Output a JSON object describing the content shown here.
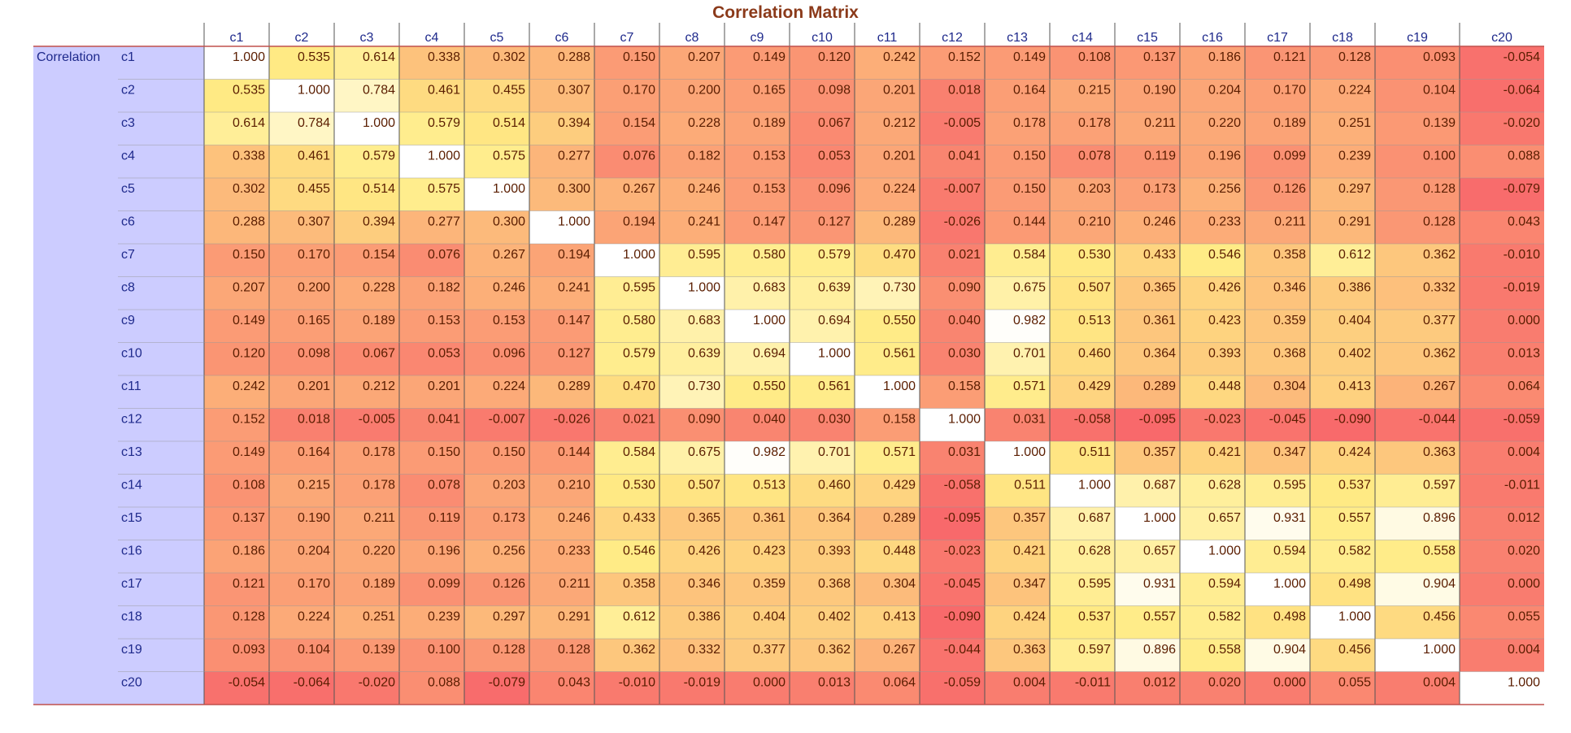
{
  "title": "Correlation Matrix",
  "row_group_label": "Correlation",
  "colors": {
    "low": "#f8696b",
    "mid": "#ffeb84",
    "high": "#ffffff",
    "label_panel": "#ccccff",
    "label_text": "#1f2a8c",
    "value_text": "#5a1d00",
    "title_text": "#8b3a1a",
    "rule_line": "#c0504d"
  },
  "chart_data": {
    "type": "heatmap",
    "title": "Correlation Matrix",
    "columns": [
      "c1",
      "c2",
      "c3",
      "c4",
      "c5",
      "c6",
      "c7",
      "c8",
      "c9",
      "c10",
      "c11",
      "c12",
      "c13",
      "c14",
      "c15",
      "c16",
      "c17",
      "c18",
      "c19",
      "c20"
    ],
    "rows": [
      "c1",
      "c2",
      "c3",
      "c4",
      "c5",
      "c6",
      "c7",
      "c8",
      "c9",
      "c10",
      "c11",
      "c12",
      "c13",
      "c14",
      "c15",
      "c16",
      "c17",
      "c18",
      "c19",
      "c20"
    ],
    "values": [
      [
        "1.000",
        "0.535",
        "0.614",
        "0.338",
        "0.302",
        "0.288",
        "0.150",
        "0.207",
        "0.149",
        "0.120",
        "0.242",
        "0.152",
        "0.149",
        "0.108",
        "0.137",
        "0.186",
        "0.121",
        "0.128",
        "0.093",
        "-0.054"
      ],
      [
        "0.535",
        "1.000",
        "0.784",
        "0.461",
        "0.455",
        "0.307",
        "0.170",
        "0.200",
        "0.165",
        "0.098",
        "0.201",
        "0.018",
        "0.164",
        "0.215",
        "0.190",
        "0.204",
        "0.170",
        "0.224",
        "0.104",
        "-0.064"
      ],
      [
        "0.614",
        "0.784",
        "1.000",
        "0.579",
        "0.514",
        "0.394",
        "0.154",
        "0.228",
        "0.189",
        "0.067",
        "0.212",
        "-0.005",
        "0.178",
        "0.178",
        "0.211",
        "0.220",
        "0.189",
        "0.251",
        "0.139",
        "-0.020"
      ],
      [
        "0.338",
        "0.461",
        "0.579",
        "1.000",
        "0.575",
        "0.277",
        "0.076",
        "0.182",
        "0.153",
        "0.053",
        "0.201",
        "0.041",
        "0.150",
        "0.078",
        "0.119",
        "0.196",
        "0.099",
        "0.239",
        "0.100",
        "0.088"
      ],
      [
        "0.302",
        "0.455",
        "0.514",
        "0.575",
        "1.000",
        "0.300",
        "0.267",
        "0.246",
        "0.153",
        "0.096",
        "0.224",
        "-0.007",
        "0.150",
        "0.203",
        "0.173",
        "0.256",
        "0.126",
        "0.297",
        "0.128",
        "-0.079"
      ],
      [
        "0.288",
        "0.307",
        "0.394",
        "0.277",
        "0.300",
        "1.000",
        "0.194",
        "0.241",
        "0.147",
        "0.127",
        "0.289",
        "-0.026",
        "0.144",
        "0.210",
        "0.246",
        "0.233",
        "0.211",
        "0.291",
        "0.128",
        "0.043"
      ],
      [
        "0.150",
        "0.170",
        "0.154",
        "0.076",
        "0.267",
        "0.194",
        "1.000",
        "0.595",
        "0.580",
        "0.579",
        "0.470",
        "0.021",
        "0.584",
        "0.530",
        "0.433",
        "0.546",
        "0.358",
        "0.612",
        "0.362",
        "-0.010"
      ],
      [
        "0.207",
        "0.200",
        "0.228",
        "0.182",
        "0.246",
        "0.241",
        "0.595",
        "1.000",
        "0.683",
        "0.639",
        "0.730",
        "0.090",
        "0.675",
        "0.507",
        "0.365",
        "0.426",
        "0.346",
        "0.386",
        "0.332",
        "-0.019"
      ],
      [
        "0.149",
        "0.165",
        "0.189",
        "0.153",
        "0.153",
        "0.147",
        "0.580",
        "0.683",
        "1.000",
        "0.694",
        "0.550",
        "0.040",
        "0.982",
        "0.513",
        "0.361",
        "0.423",
        "0.359",
        "0.404",
        "0.377",
        "0.000"
      ],
      [
        "0.120",
        "0.098",
        "0.067",
        "0.053",
        "0.096",
        "0.127",
        "0.579",
        "0.639",
        "0.694",
        "1.000",
        "0.561",
        "0.030",
        "0.701",
        "0.460",
        "0.364",
        "0.393",
        "0.368",
        "0.402",
        "0.362",
        "0.013"
      ],
      [
        "0.242",
        "0.201",
        "0.212",
        "0.201",
        "0.224",
        "0.289",
        "0.470",
        "0.730",
        "0.550",
        "0.561",
        "1.000",
        "0.158",
        "0.571",
        "0.429",
        "0.289",
        "0.448",
        "0.304",
        "0.413",
        "0.267",
        "0.064"
      ],
      [
        "0.152",
        "0.018",
        "-0.005",
        "0.041",
        "-0.007",
        "-0.026",
        "0.021",
        "0.090",
        "0.040",
        "0.030",
        "0.158",
        "1.000",
        "0.031",
        "-0.058",
        "-0.095",
        "-0.023",
        "-0.045",
        "-0.090",
        "-0.044",
        "-0.059"
      ],
      [
        "0.149",
        "0.164",
        "0.178",
        "0.150",
        "0.150",
        "0.144",
        "0.584",
        "0.675",
        "0.982",
        "0.701",
        "0.571",
        "0.031",
        "1.000",
        "0.511",
        "0.357",
        "0.421",
        "0.347",
        "0.424",
        "0.363",
        "0.004"
      ],
      [
        "0.108",
        "0.215",
        "0.178",
        "0.078",
        "0.203",
        "0.210",
        "0.530",
        "0.507",
        "0.513",
        "0.460",
        "0.429",
        "-0.058",
        "0.511",
        "1.000",
        "0.687",
        "0.628",
        "0.595",
        "0.537",
        "0.597",
        "-0.011"
      ],
      [
        "0.137",
        "0.190",
        "0.211",
        "0.119",
        "0.173",
        "0.246",
        "0.433",
        "0.365",
        "0.361",
        "0.364",
        "0.289",
        "-0.095",
        "0.357",
        "0.687",
        "1.000",
        "0.657",
        "0.931",
        "0.557",
        "0.896",
        "0.012"
      ],
      [
        "0.186",
        "0.204",
        "0.220",
        "0.196",
        "0.256",
        "0.233",
        "0.546",
        "0.426",
        "0.423",
        "0.393",
        "0.448",
        "-0.023",
        "0.421",
        "0.628",
        "0.657",
        "1.000",
        "0.594",
        "0.582",
        "0.558",
        "0.020"
      ],
      [
        "0.121",
        "0.170",
        "0.189",
        "0.099",
        "0.126",
        "0.211",
        "0.358",
        "0.346",
        "0.359",
        "0.368",
        "0.304",
        "-0.045",
        "0.347",
        "0.595",
        "0.931",
        "0.594",
        "1.000",
        "0.498",
        "0.904",
        "0.000"
      ],
      [
        "0.128",
        "0.224",
        "0.251",
        "0.239",
        "0.297",
        "0.291",
        "0.612",
        "0.386",
        "0.404",
        "0.402",
        "0.413",
        "-0.090",
        "0.424",
        "0.537",
        "0.557",
        "0.582",
        "0.498",
        "1.000",
        "0.456",
        "0.055"
      ],
      [
        "0.093",
        "0.104",
        "0.139",
        "0.100",
        "0.128",
        "0.128",
        "0.362",
        "0.332",
        "0.377",
        "0.362",
        "0.267",
        "-0.044",
        "0.363",
        "0.597",
        "0.896",
        "0.558",
        "0.904",
        "0.456",
        "1.000",
        "0.004"
      ],
      [
        "-0.054",
        "-0.064",
        "-0.020",
        "0.088",
        "-0.079",
        "0.043",
        "-0.010",
        "-0.019",
        "0.000",
        "0.013",
        "0.064",
        "-0.059",
        "0.004",
        "-0.011",
        "0.012",
        "0.020",
        "0.000",
        "0.055",
        "0.004",
        "1.000"
      ]
    ]
  }
}
